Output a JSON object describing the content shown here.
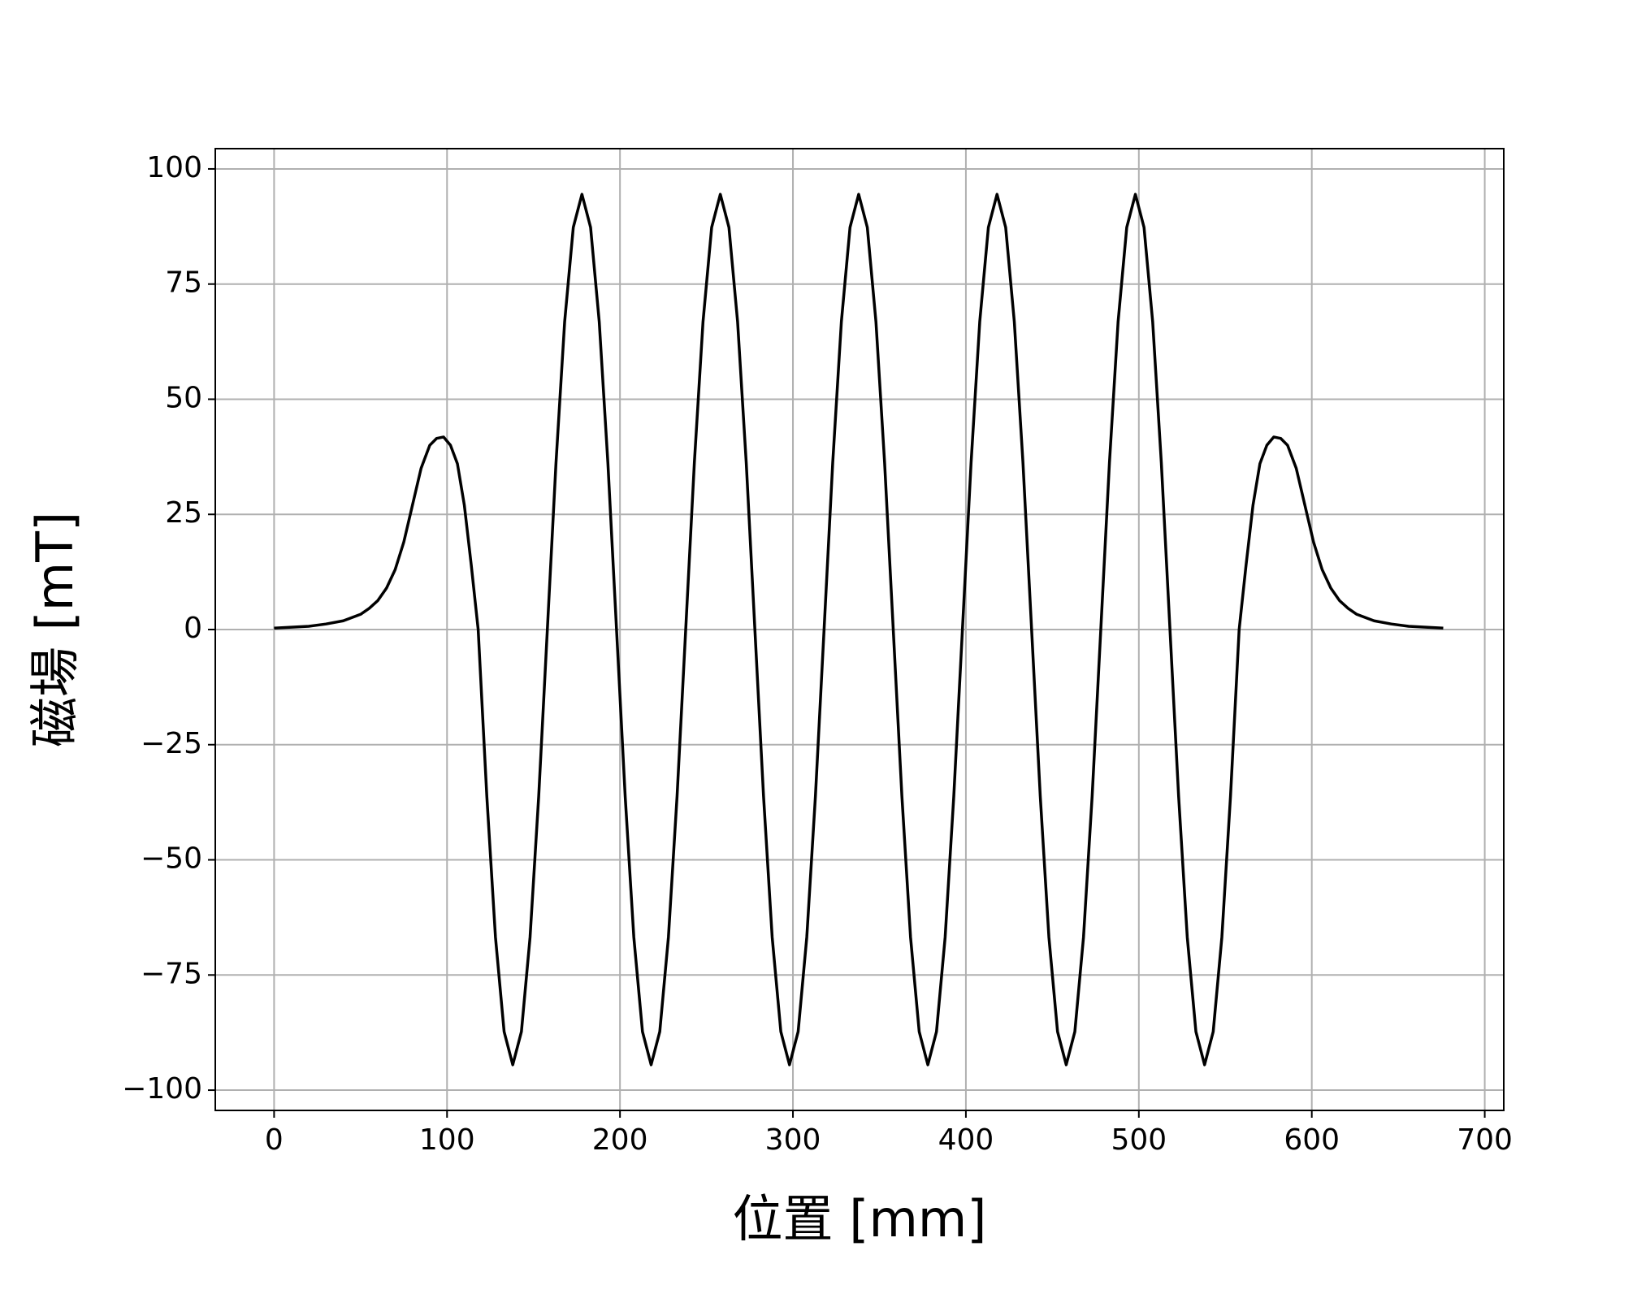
{
  "chart_data": {
    "type": "line",
    "xlabel": "位置 [mm]",
    "ylabel": "磁場 [mT]",
    "x": [
      0,
      10,
      20,
      30,
      40,
      50,
      55,
      60,
      65,
      70,
      75,
      80,
      85,
      90,
      94,
      98,
      102,
      106,
      110,
      114,
      118,
      123,
      128,
      133,
      138,
      143,
      148,
      153,
      158,
      163,
      168,
      173,
      178,
      183,
      188,
      193,
      198,
      203,
      208,
      213,
      218,
      223,
      228,
      233,
      238,
      243,
      248,
      253,
      258,
      263,
      268,
      273,
      278,
      283,
      288,
      293,
      298,
      303,
      308,
      313,
      318,
      323,
      328,
      333,
      338,
      343,
      348,
      353,
      358,
      363,
      368,
      373,
      378,
      383,
      388,
      393,
      398,
      403,
      408,
      413,
      418,
      423,
      428,
      433,
      438,
      443,
      448,
      453,
      458,
      463,
      468,
      473,
      478,
      483,
      488,
      493,
      498,
      503,
      508,
      513,
      518,
      523,
      528,
      533,
      538,
      543,
      548,
      553,
      558,
      562,
      566,
      570,
      574,
      578,
      582,
      586,
      591,
      596,
      601,
      606,
      611,
      616,
      621,
      626,
      636,
      646,
      656,
      666,
      676
    ],
    "values": [
      0.3,
      0.5,
      0.7,
      1.2,
      1.9,
      3.3,
      4.6,
      6.3,
      9,
      13,
      19,
      27,
      35,
      40,
      41.5,
      41.8,
      40,
      36,
      27,
      14,
      0,
      -36.2,
      -66.8,
      -87.3,
      -94.5,
      -87.3,
      -66.8,
      -36.2,
      0,
      36.2,
      66.8,
      87.3,
      94.5,
      87.3,
      66.8,
      36.2,
      0,
      -36.2,
      -66.8,
      -87.3,
      -94.5,
      -87.3,
      -66.8,
      -36.2,
      0,
      36.2,
      66.8,
      87.3,
      94.5,
      87.3,
      66.8,
      36.2,
      0,
      -36.2,
      -66.8,
      -87.3,
      -94.5,
      -87.3,
      -66.8,
      -36.2,
      0,
      36.2,
      66.8,
      87.3,
      94.5,
      87.3,
      66.8,
      36.2,
      0,
      -36.2,
      -66.8,
      -87.3,
      -94.5,
      -87.3,
      -66.8,
      -36.2,
      0,
      36.2,
      66.8,
      87.3,
      94.5,
      87.3,
      66.8,
      36.2,
      0,
      -36.2,
      -66.8,
      -87.3,
      -94.5,
      -87.3,
      -66.8,
      -36.2,
      0,
      36.2,
      66.8,
      87.3,
      94.5,
      87.3,
      66.8,
      36.2,
      0,
      -36.2,
      -66.8,
      -87.3,
      -94.5,
      -87.3,
      -66.8,
      -36.2,
      0,
      14,
      27,
      36,
      40,
      41.8,
      41.5,
      40,
      35,
      27,
      19,
      13,
      9,
      6.3,
      4.6,
      3.3,
      1.9,
      1.2,
      0.7,
      0.5,
      0.3
    ],
    "color": "#000000",
    "xlim": [
      -34,
      711
    ],
    "xticks": [
      0,
      100,
      200,
      300,
      400,
      500,
      600,
      700
    ],
    "ylim": [
      -104.4,
      104.4
    ],
    "yticks": [
      {
        "value": -100,
        "label": "−100"
      },
      {
        "value": -75,
        "label": "−75"
      },
      {
        "value": -50,
        "label": "−50"
      },
      {
        "value": -25,
        "label": "−25"
      },
      0,
      25,
      50,
      75,
      100
    ],
    "grid": true
  }
}
